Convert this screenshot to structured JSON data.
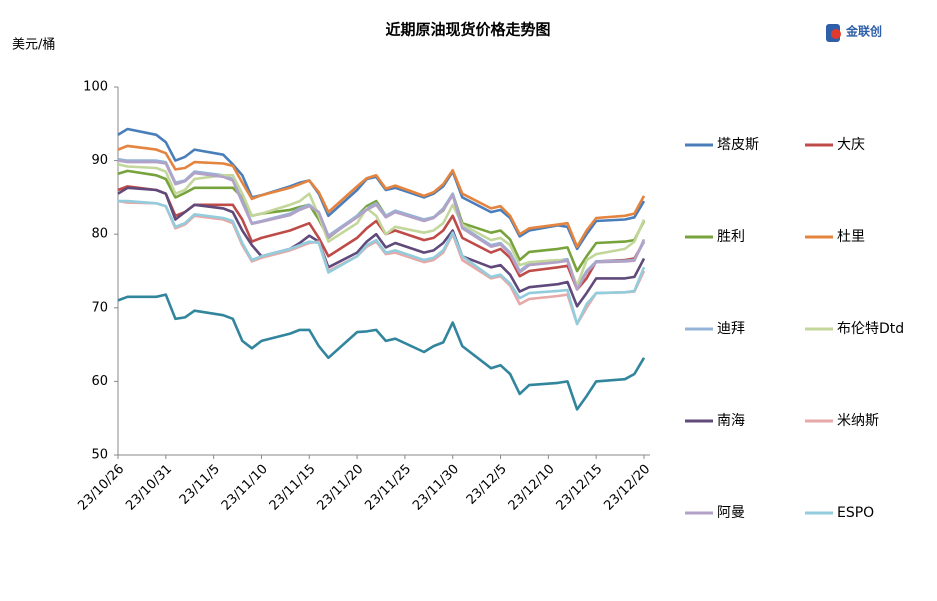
{
  "chart_data": {
    "type": "line",
    "title": "近期原油现货价格走势图",
    "y_axis_label": "美元/桶",
    "logo": "金联创",
    "x": [
      "23/10/26",
      "23/10/27",
      "23/10/30",
      "23/10/31",
      "23/11/1",
      "23/11/2",
      "23/11/3",
      "23/11/6",
      "23/11/7",
      "23/11/8",
      "23/11/9",
      "23/11/10",
      "23/11/13",
      "23/11/14",
      "23/11/15",
      "23/11/16",
      "23/11/17",
      "23/11/20",
      "23/11/21",
      "23/11/22",
      "23/11/23",
      "23/11/24",
      "23/11/27",
      "23/11/28",
      "23/11/29",
      "23/11/30",
      "23/12/1",
      "23/12/4",
      "23/12/5",
      "23/12/6",
      "23/12/7",
      "23/12/8",
      "23/12/11",
      "23/12/12",
      "23/12/13",
      "23/12/14",
      "23/12/15",
      "23/12/18",
      "23/12/19",
      "23/12/20"
    ],
    "xlim": [
      "23/10/26",
      "23/12/20"
    ],
    "xticks": [
      "23/10/26",
      "23/10/31",
      "23/11/5",
      "23/11/10",
      "23/11/15",
      "23/11/20",
      "23/11/25",
      "23/11/30",
      "23/12/5",
      "23/12/10",
      "23/12/15",
      "23/12/20"
    ],
    "ylim": [
      50,
      100
    ],
    "yticks": [
      50,
      60,
      70,
      80,
      90,
      100
    ],
    "grid": false,
    "legend": "right",
    "series": [
      {
        "name": "塔皮斯",
        "color": "#4a7ebb",
        "values": [
          93.5,
          94.3,
          93.5,
          92.5,
          90.0,
          90.5,
          91.5,
          90.8,
          89.5,
          88.0,
          85.0,
          85.3,
          86.5,
          87.0,
          87.3,
          85.5,
          82.5,
          86.0,
          87.5,
          87.8,
          86.0,
          86.3,
          85.0,
          85.5,
          86.5,
          88.5,
          85.0,
          83.0,
          83.3,
          82.2,
          79.7,
          80.5,
          81.2,
          81.0,
          78.0,
          80.0,
          81.8,
          82.0,
          82.3,
          84.5
        ]
      },
      {
        "name": "大庆",
        "color": "#be4b48",
        "values": [
          86.0,
          86.5,
          86.0,
          85.5,
          82.5,
          83.0,
          84.0,
          84.0,
          84.0,
          82.0,
          79.0,
          79.5,
          80.5,
          81.0,
          81.5,
          79.5,
          77.0,
          79.5,
          80.8,
          81.8,
          80.0,
          80.5,
          79.2,
          79.5,
          80.5,
          82.5,
          79.5,
          77.5,
          78.0,
          76.8,
          74.3,
          75.0,
          75.5,
          75.7,
          72.5,
          74.0,
          76.3,
          76.5,
          76.7,
          79.0
        ]
      },
      {
        "name": "胜利",
        "color": "#77a33c",
        "values": [
          88.2,
          88.6,
          88.0,
          87.5,
          85.0,
          85.6,
          86.3,
          86.3,
          86.3,
          85.0,
          82.5,
          82.8,
          83.3,
          83.7,
          84.0,
          82.0,
          79.5,
          82.5,
          83.8,
          84.5,
          82.5,
          83.0,
          82.0,
          82.3,
          83.2,
          85.5,
          81.5,
          80.2,
          80.5,
          79.3,
          76.5,
          77.6,
          78.0,
          78.2,
          75.0,
          77.0,
          78.8,
          79.0,
          79.2,
          81.8
        ]
      },
      {
        "name": "杜里",
        "color": "#e4843f",
        "values": [
          91.5,
          92.0,
          91.5,
          91.0,
          88.8,
          89.0,
          89.8,
          89.6,
          89.3,
          87.0,
          84.8,
          85.3,
          86.3,
          86.8,
          87.3,
          85.7,
          83.0,
          86.5,
          87.6,
          88.0,
          86.2,
          86.6,
          85.2,
          85.7,
          86.8,
          88.7,
          85.5,
          83.5,
          83.8,
          82.5,
          80.0,
          80.8,
          81.3,
          81.5,
          78.3,
          80.5,
          82.2,
          82.5,
          82.8,
          85.2
        ]
      },
      {
        "name": "迪拜",
        "color": "#95b3d7",
        "values": [
          90.2,
          90.0,
          90.0,
          89.8,
          87.0,
          87.3,
          88.5,
          88.0,
          87.5,
          84.5,
          81.5,
          81.8,
          82.8,
          83.5,
          84.0,
          83.0,
          79.8,
          82.5,
          83.5,
          84.2,
          82.5,
          83.2,
          82.0,
          82.3,
          83.5,
          85.5,
          81.0,
          78.5,
          78.8,
          77.5,
          75.0,
          76.0,
          76.4,
          76.6,
          72.8,
          75.0,
          76.3,
          76.4,
          76.5,
          79.0
        ]
      },
      {
        "name": "布伦特Dtd",
        "color": "#c3d69b",
        "values": [
          89.5,
          89.2,
          89.0,
          88.5,
          85.5,
          86.0,
          87.5,
          88.0,
          88.0,
          85.5,
          82.5,
          82.8,
          84.0,
          84.5,
          85.5,
          82.5,
          79.0,
          81.5,
          83.5,
          82.5,
          80.0,
          81.0,
          80.2,
          80.5,
          81.5,
          84.0,
          81.3,
          79.2,
          79.5,
          78.5,
          75.8,
          76.2,
          76.5,
          76.3,
          73.0,
          76.5,
          77.3,
          78.0,
          79.0,
          82.0
        ]
      },
      {
        "name": "南海",
        "color": "#604a7b",
        "values": [
          85.5,
          86.3,
          86.0,
          85.5,
          82.0,
          83.0,
          84.0,
          83.5,
          83.0,
          80.5,
          78.5,
          77.0,
          78.0,
          78.8,
          79.8,
          79.0,
          75.5,
          77.5,
          79.0,
          80.0,
          78.2,
          78.8,
          77.5,
          77.8,
          78.8,
          80.5,
          77.0,
          75.5,
          75.8,
          74.5,
          72.2,
          72.8,
          73.2,
          73.5,
          70.2,
          72.0,
          74.0,
          74.0,
          74.2,
          76.7
        ]
      },
      {
        "name": "米纳斯",
        "color": "#e6a9a8",
        "values": [
          84.5,
          84.3,
          84.2,
          83.8,
          80.8,
          81.3,
          82.5,
          82.0,
          81.5,
          78.5,
          76.3,
          76.8,
          77.8,
          78.3,
          78.8,
          79.0,
          75.0,
          77.0,
          78.3,
          79.0,
          77.3,
          77.5,
          76.2,
          76.5,
          77.5,
          80.0,
          76.5,
          74.0,
          74.3,
          73.0,
          70.5,
          71.2,
          71.6,
          71.8,
          67.8,
          70.0,
          72.0,
          72.1,
          72.2,
          75.0
        ]
      },
      {
        "name": "阿曼",
        "color": "#b3a2c7",
        "values": [
          90.0,
          89.8,
          89.8,
          89.6,
          86.8,
          87.2,
          88.3,
          87.8,
          87.3,
          84.3,
          81.4,
          81.7,
          82.6,
          83.3,
          83.8,
          83.0,
          79.6,
          82.3,
          83.3,
          84.0,
          82.3,
          83.0,
          81.8,
          82.2,
          83.3,
          85.3,
          80.8,
          78.3,
          78.6,
          77.3,
          74.8,
          75.8,
          76.2,
          76.4,
          72.5,
          74.8,
          76.2,
          76.3,
          76.4,
          79.3
        ]
      },
      {
        "name": "ESPO",
        "color": "#93cddd",
        "values": [
          84.5,
          84.5,
          84.2,
          83.8,
          81.0,
          81.5,
          82.7,
          82.2,
          81.8,
          78.8,
          76.5,
          77.0,
          78.0,
          78.5,
          79.0,
          78.8,
          74.8,
          77.0,
          78.5,
          79.2,
          77.5,
          77.8,
          76.5,
          76.8,
          77.8,
          80.2,
          77.0,
          74.2,
          74.5,
          73.3,
          71.3,
          72.0,
          72.3,
          72.4,
          67.8,
          70.5,
          72.0,
          72.1,
          72.3,
          75.5
        ]
      },
      {
        "color": "#31859c",
        "values": [
          71.0,
          71.5,
          71.5,
          71.8,
          68.5,
          68.7,
          69.6,
          69.0,
          68.5,
          65.5,
          64.5,
          65.5,
          66.5,
          67.0,
          67.0,
          64.8,
          63.2,
          66.7,
          66.8,
          67.0,
          65.5,
          65.8,
          64.0,
          64.8,
          65.3,
          68.0,
          64.8,
          61.8,
          62.2,
          61.0,
          58.3,
          59.5,
          59.8,
          60.0,
          56.2,
          58.0,
          60.0,
          60.3,
          61.0,
          63.2
        ]
      }
    ]
  }
}
